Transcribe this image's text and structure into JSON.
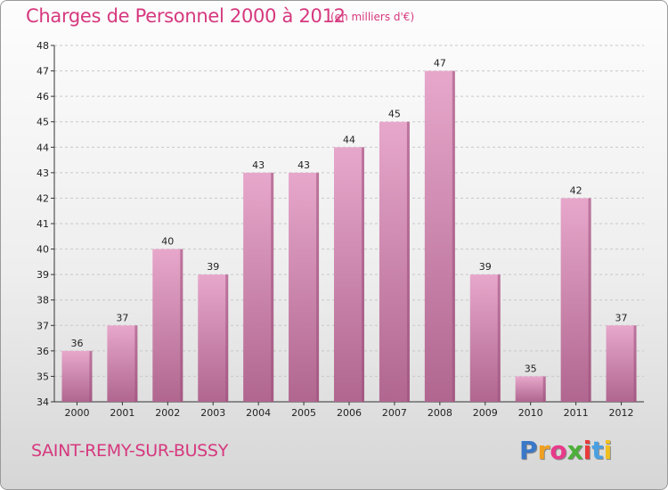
{
  "header": {
    "title": "Charges de Personnel 2000 à 2012",
    "subtitle": "(en milliers d'€)"
  },
  "footer": {
    "commune": "SAINT-REMY-SUR-BUSSY",
    "logo_letters": [
      "P",
      "r",
      "o",
      "x",
      "i",
      "t",
      "i"
    ],
    "logo_colors": [
      "#3a78c8",
      "#f0a020",
      "#e83a8a",
      "#4caf3a",
      "#e83a3a",
      "#4aa0e0",
      "#f0c020"
    ]
  },
  "colors": {
    "bar_top": "#e7a7cb",
    "bar_bottom": "#b0668f",
    "bar_side": "#9a4f78",
    "grid": "#c8c8c8",
    "axis": "#333333",
    "accent": "#d6387e"
  },
  "chart_data": {
    "type": "bar",
    "categories": [
      "2000",
      "2001",
      "2002",
      "2003",
      "2004",
      "2005",
      "2006",
      "2007",
      "2008",
      "2009",
      "2010",
      "2011",
      "2012"
    ],
    "values": [
      36,
      37,
      40,
      39,
      43,
      43,
      44,
      45,
      47,
      39,
      35,
      42,
      37
    ],
    "data_labels": [
      "36",
      "37",
      "40",
      "39",
      "43",
      "43",
      "44",
      "45",
      "47",
      "39",
      "35",
      "42",
      "37"
    ],
    "y_ticks": [
      "34",
      "35",
      "36",
      "37",
      "38",
      "39",
      "40",
      "41",
      "42",
      "43",
      "44",
      "45",
      "46",
      "47",
      "48"
    ],
    "ylim": [
      34,
      48
    ],
    "grid": true,
    "legend": "none"
  }
}
